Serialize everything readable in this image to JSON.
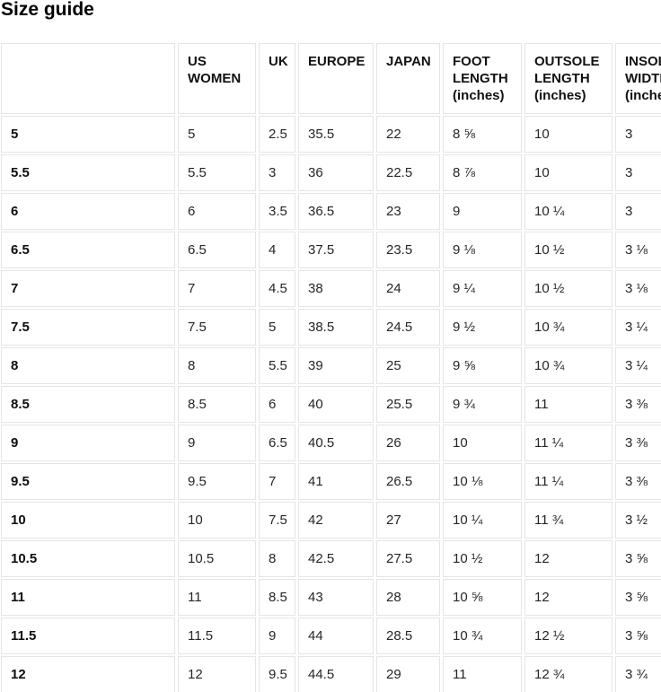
{
  "page": {
    "title": "Size guide"
  },
  "table": {
    "columns": [
      {
        "key": "size",
        "label": ""
      },
      {
        "key": "us-women",
        "label": "US WOMEN"
      },
      {
        "key": "uk",
        "label": "UK"
      },
      {
        "key": "europe",
        "label": "EUROPE"
      },
      {
        "key": "japan",
        "label": "JAPAN"
      },
      {
        "key": "foot-length",
        "label": "FOOT LENGTH (inches)"
      },
      {
        "key": "outsole-length",
        "label": "OUTSOLE LENGTH (inches)"
      },
      {
        "key": "insole-width",
        "label": "INSOLE WIDTH (inches)"
      }
    ],
    "rows": [
      [
        "5",
        "5",
        "2.5",
        "35.5",
        "22",
        "8 ⅝",
        "10",
        "3"
      ],
      [
        "5.5",
        "5.5",
        "3",
        "36",
        "22.5",
        "8 ⅞",
        "10",
        "3"
      ],
      [
        "6",
        "6",
        "3.5",
        "36.5",
        "23",
        "9",
        "10 ¼",
        "3"
      ],
      [
        "6.5",
        "6.5",
        "4",
        "37.5",
        "23.5",
        "9 ⅛",
        "10 ½",
        "3 ⅛"
      ],
      [
        "7",
        "7",
        "4.5",
        "38",
        "24",
        "9 ¼",
        "10 ½",
        "3 ⅛"
      ],
      [
        "7.5",
        "7.5",
        "5",
        "38.5",
        "24.5",
        "9 ½",
        "10 ¾",
        "3 ¼"
      ],
      [
        "8",
        "8",
        "5.5",
        "39",
        "25",
        "9 ⅝",
        "10 ¾",
        "3 ¼"
      ],
      [
        "8.5",
        "8.5",
        "6",
        "40",
        "25.5",
        "9 ¾",
        "11",
        "3 ⅜"
      ],
      [
        "9",
        "9",
        "6.5",
        "40.5",
        "26",
        "10",
        "11 ¼",
        "3 ⅜"
      ],
      [
        "9.5",
        "9.5",
        "7",
        "41",
        "26.5",
        "10 ⅛",
        "11 ¼",
        "3 ⅜"
      ],
      [
        "10",
        "10",
        "7.5",
        "42",
        "27",
        "10 ¼",
        "11 ¾",
        "3 ½"
      ],
      [
        "10.5",
        "10.5",
        "8",
        "42.5",
        "27.5",
        "10 ½",
        "12",
        "3 ⅝"
      ],
      [
        "11",
        "11",
        "8.5",
        "43",
        "28",
        "10 ⅝",
        "12",
        "3 ⅝"
      ],
      [
        "11.5",
        "11.5",
        "9",
        "44",
        "28.5",
        "10 ¾",
        "12 ½",
        "3 ⅝"
      ],
      [
        "12",
        "12",
        "9.5",
        "44.5",
        "29",
        "11",
        "12 ¾",
        "3 ¾"
      ]
    ],
    "colors": {
      "background": "#ffffff",
      "border": "#e5e5e5",
      "header_text": "#111111",
      "cell_text": "#262626"
    }
  }
}
